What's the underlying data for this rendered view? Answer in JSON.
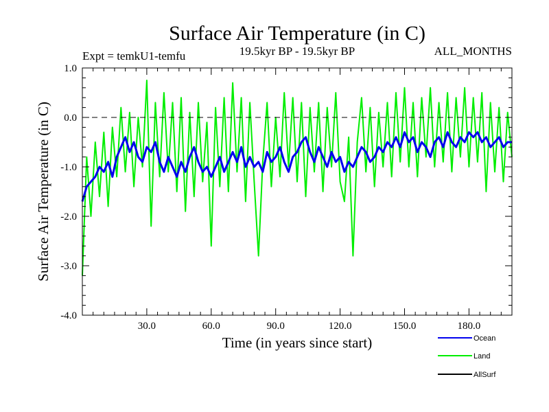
{
  "chart_data": {
    "type": "line",
    "title": "Surface Air Temperature (in C)",
    "subtitle_left": "Expt = temkU1-temfu",
    "subtitle_center": "19.5kyr BP - 19.5kyr BP",
    "subtitle_right": "ALL_MONTHS",
    "xlabel": "Time (in years since start)",
    "ylabel": "Surface Air Temperature (in C)",
    "xlim": [
      0,
      200
    ],
    "ylim": [
      -4.0,
      1.0
    ],
    "x_ticks": [
      {
        "value": 30,
        "label": "30.0"
      },
      {
        "value": 60,
        "label": "60.0"
      },
      {
        "value": 90,
        "label": "90.0"
      },
      {
        "value": 120,
        "label": "120.0"
      },
      {
        "value": 150,
        "label": "150.0"
      },
      {
        "value": 180,
        "label": "180.0"
      }
    ],
    "y_ticks": [
      {
        "value": 1.0,
        "label": "1.0"
      },
      {
        "value": 0.0,
        "label": "0.0"
      },
      {
        "value": -1.0,
        "label": "-1.0"
      },
      {
        "value": -2.0,
        "label": "-2.0"
      },
      {
        "value": -3.0,
        "label": "-3.0"
      },
      {
        "value": -4.0,
        "label": "-4.0"
      }
    ],
    "reference_line": {
      "y": 0.0,
      "style": "dashed"
    },
    "series": [
      {
        "name": "Land",
        "color": "#00ee00",
        "x": [
          0,
          2,
          4,
          6,
          8,
          10,
          12,
          14,
          16,
          18,
          20,
          22,
          24,
          26,
          28,
          30,
          32,
          34,
          36,
          38,
          40,
          42,
          44,
          46,
          48,
          50,
          52,
          54,
          56,
          58,
          60,
          62,
          64,
          66,
          68,
          70,
          72,
          74,
          76,
          78,
          80,
          82,
          84,
          86,
          88,
          90,
          92,
          94,
          96,
          98,
          100,
          102,
          104,
          106,
          108,
          110,
          112,
          114,
          116,
          118,
          120,
          122,
          124,
          126,
          128,
          130,
          132,
          134,
          136,
          138,
          140,
          142,
          144,
          146,
          148,
          150,
          152,
          154,
          156,
          158,
          160,
          162,
          164,
          166,
          168,
          170,
          172,
          174,
          176,
          178,
          180,
          182,
          184,
          186,
          188,
          190,
          192,
          194,
          196,
          198,
          200
        ],
        "values": [
          -3.2,
          -0.8,
          -2.0,
          -0.5,
          -1.6,
          -0.3,
          -1.8,
          -0.2,
          -1.2,
          0.2,
          -1.1,
          0.1,
          -1.4,
          0.0,
          -1.0,
          0.75,
          -2.2,
          0.3,
          -1.2,
          0.5,
          -1.1,
          0.3,
          -1.5,
          0.4,
          -1.9,
          0.1,
          -1.6,
          0.3,
          -1.3,
          -0.1,
          -2.6,
          0.2,
          -1.4,
          0.4,
          -1.5,
          0.7,
          -1.1,
          0.4,
          -1.7,
          0.3,
          -1.3,
          -2.8,
          -0.9,
          0.3,
          -1.4,
          0.0,
          -1.2,
          0.5,
          -1.0,
          0.4,
          -1.3,
          0.3,
          -1.6,
          0.2,
          -1.1,
          0.3,
          -1.5,
          0.2,
          -1.0,
          0.5,
          -1.3,
          -1.7,
          -0.4,
          -2.8,
          -0.5,
          0.4,
          -1.1,
          0.2,
          -1.4,
          0.1,
          -1.0,
          0.3,
          -1.2,
          0.5,
          -0.9,
          0.6,
          -1.0,
          0.3,
          -1.2,
          0.4,
          -0.8,
          0.6,
          -1.0,
          0.3,
          -0.9,
          0.5,
          -1.1,
          0.4,
          -0.8,
          0.6,
          -1.0,
          0.4,
          -0.9,
          0.5,
          -1.5,
          0.3,
          -1.1,
          0.2,
          -1.3,
          0.1,
          -0.8
        ]
      },
      {
        "name": "Ocean",
        "color": "#0000ee",
        "x": [
          0,
          2,
          4,
          6,
          8,
          10,
          12,
          14,
          16,
          18,
          20,
          22,
          24,
          26,
          28,
          30,
          32,
          34,
          36,
          38,
          40,
          42,
          44,
          46,
          48,
          50,
          52,
          54,
          56,
          58,
          60,
          62,
          64,
          66,
          68,
          70,
          72,
          74,
          76,
          78,
          80,
          82,
          84,
          86,
          88,
          90,
          92,
          94,
          96,
          98,
          100,
          102,
          104,
          106,
          108,
          110,
          112,
          114,
          116,
          118,
          120,
          122,
          124,
          126,
          128,
          130,
          132,
          134,
          136,
          138,
          140,
          142,
          144,
          146,
          148,
          150,
          152,
          154,
          156,
          158,
          160,
          162,
          164,
          166,
          168,
          170,
          172,
          174,
          176,
          178,
          180,
          182,
          184,
          186,
          188,
          190,
          192,
          194,
          196,
          198,
          200
        ],
        "values": [
          -1.7,
          -1.4,
          -1.3,
          -1.2,
          -1.0,
          -1.1,
          -0.9,
          -1.2,
          -0.8,
          -0.6,
          -0.4,
          -0.7,
          -0.5,
          -0.8,
          -0.9,
          -0.6,
          -0.7,
          -0.5,
          -0.9,
          -1.1,
          -0.8,
          -1.0,
          -1.2,
          -0.9,
          -1.1,
          -0.8,
          -0.6,
          -0.9,
          -1.1,
          -1.0,
          -1.2,
          -1.0,
          -0.8,
          -1.1,
          -0.9,
          -0.7,
          -0.9,
          -0.6,
          -1.0,
          -0.8,
          -1.0,
          -0.9,
          -1.1,
          -0.7,
          -0.9,
          -0.8,
          -0.6,
          -0.9,
          -1.1,
          -0.8,
          -0.7,
          -0.5,
          -0.4,
          -0.7,
          -0.9,
          -0.6,
          -0.8,
          -1.0,
          -0.7,
          -0.9,
          -0.8,
          -1.1,
          -0.9,
          -1.0,
          -0.8,
          -0.6,
          -0.7,
          -0.9,
          -0.8,
          -0.6,
          -0.7,
          -0.5,
          -0.6,
          -0.4,
          -0.6,
          -0.3,
          -0.5,
          -0.4,
          -0.7,
          -0.5,
          -0.6,
          -0.8,
          -0.5,
          -0.4,
          -0.6,
          -0.3,
          -0.5,
          -0.6,
          -0.4,
          -0.5,
          -0.3,
          -0.4,
          -0.3,
          -0.5,
          -0.4,
          -0.6,
          -0.5,
          -0.4,
          -0.6,
          -0.5,
          -0.5
        ]
      },
      {
        "name": "AllSurf",
        "color": "#000000",
        "x": [],
        "values": []
      }
    ],
    "legend": {
      "placement": "bottom-right",
      "entries": [
        {
          "label": "Ocean",
          "color": "#0000ee"
        },
        {
          "label": "Land",
          "color": "#00ee00"
        },
        {
          "label": "AllSurf",
          "color": "#000000"
        }
      ]
    }
  }
}
